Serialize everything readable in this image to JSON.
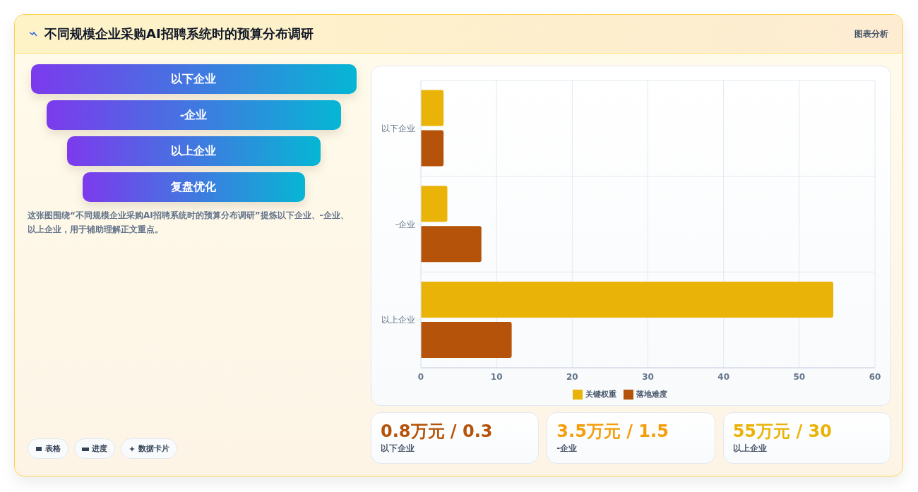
{
  "chart_data": [
    {
      "type": "other",
      "title": "不同规模企业采购AI招聘系统时的预算分布调研",
      "subtitle": "图表分析",
      "categories": [
        "以下企业",
        "-企业",
        "以上企业",
        "复盘优化"
      ],
      "annotations": [
        "这张图围绕“不同规模企业采购AI招聘系统时的预算分布调研”提炼以下企业、-企业、以上企业，用于辅助理解正文重点。",
        "表格",
        "进度",
        "数据卡片"
      ]
    },
    {
      "type": "bar",
      "orientation": "horizontal",
      "categories": [
        "以下企业",
        "-企业",
        "以上企业"
      ],
      "series": [
        {
          "name": "关键权重",
          "color": "#eab308",
          "values": [
            3,
            3.5,
            54.5
          ]
        },
        {
          "name": "落地难度",
          "color": "#b45309",
          "values": [
            3,
            8,
            12
          ]
        }
      ],
      "xlim": [
        0,
        60
      ],
      "xticks": [
        0,
        10,
        20,
        30,
        40,
        50,
        60
      ],
      "grid": true,
      "legend": "bottom"
    },
    {
      "type": "other",
      "categories": [
        "以下企业",
        "-企业",
        "以上企业"
      ],
      "annotations": [
        "0.8万元 / 0.3",
        "3.5万元 / 1.5",
        "55万元 / 30"
      ]
    }
  ]
}
